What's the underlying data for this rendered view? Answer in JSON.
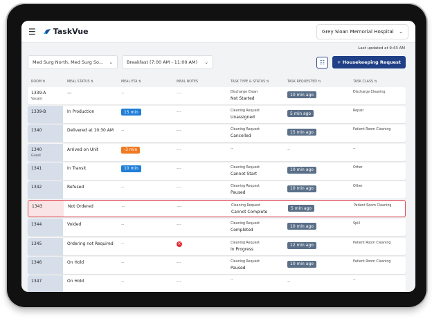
{
  "app": {
    "name": "TaskVue",
    "hospital": "Grey Sloan Memorial Hospital",
    "last_updated": "Last updated at 9:43 AM"
  },
  "filters": {
    "unit": "Med Surg North, Med Surg So...",
    "meal": "Breakfast (7:00 AM - 11:00 AM)",
    "add_button": "+ Housekeeping Request"
  },
  "columns": [
    "ROOM ⇅",
    "MEAL STATUS ⇅",
    "MEAL ETA ⇅",
    "MEAL NOTES",
    "TASK TYPE & STATUS ⇅",
    "TASK REQUESTED ⇅",
    "TASK CLASS ⇅"
  ],
  "rows": [
    {
      "room": "1339-A",
      "sub": "Vacant",
      "meal_status": "---",
      "eta": "--",
      "notes": "---",
      "task_type": "Discharge Clean",
      "task_status": "Not Started",
      "requested": "10 min ago",
      "class": "Discharge Cleaning"
    },
    {
      "room": "1339-B",
      "sub": "",
      "meal_status": "In Production",
      "eta": "15 min",
      "eta_color": "blue",
      "notes": "---",
      "task_type": "Cleaning Request",
      "task_status": "Unassigned",
      "requested": "5 min ago",
      "class": "Repair"
    },
    {
      "room": "1340",
      "sub": "",
      "meal_status": "Delivered at 10:30 AM",
      "eta": "--",
      "notes": "---",
      "task_type": "Cleaning Request",
      "task_status": "Cancelled",
      "requested": "15 min ago",
      "class": "Patient Room Cleaning"
    },
    {
      "room": "1340",
      "sub": "Guest",
      "meal_status": "Arrived on Unit",
      "eta": "-3 min",
      "eta_color": "orange",
      "notes": "---",
      "task_type": "--",
      "task_status": "",
      "requested": "--",
      "class": "--"
    },
    {
      "room": "1341",
      "sub": "",
      "meal_status": "In Transit",
      "eta": "10 min",
      "eta_color": "blue",
      "notes": "---",
      "task_type": "Cleaning Request",
      "task_status": "Cannot Start",
      "requested": "10 min ago",
      "class": "Other"
    },
    {
      "room": "1342",
      "sub": "",
      "meal_status": "Refused",
      "eta": "--",
      "notes": "---",
      "task_type": "Cleaning Request",
      "task_status": "Paused",
      "requested": "10 min ago",
      "class": "Other"
    },
    {
      "room": "1343",
      "sub": "",
      "meal_status": "Not Ordered",
      "eta": "--",
      "notes": "---",
      "task_type": "Cleaning Request",
      "task_status": "Cannot Complete",
      "requested": "5 min ago",
      "class": "Patient Room Cleaning",
      "alert": true
    },
    {
      "room": "1344",
      "sub": "",
      "meal_status": "Voided",
      "eta": "--",
      "notes": "---",
      "task_type": "Cleaning Request",
      "task_status": "Completed",
      "requested": "10 min ago",
      "class": "Spill"
    },
    {
      "room": "1345",
      "sub": "",
      "meal_status": "Ordering not Required",
      "eta": "--",
      "notes": "error-icon",
      "task_type": "Cleaning Request",
      "task_status": "In Progress",
      "requested": "12 min ago",
      "class": "Patient Room Cleaning"
    },
    {
      "room": "1346",
      "sub": "",
      "meal_status": "On Hold",
      "eta": "--",
      "notes": "---",
      "task_type": "Cleaning Request",
      "task_status": "Paused",
      "requested": "10 min ago",
      "class": "Patient Room Cleaning"
    },
    {
      "room": "1347",
      "sub": "",
      "meal_status": "On Hold",
      "eta": "--",
      "notes": "---",
      "task_type": "--",
      "task_status": "",
      "requested": "--",
      "class": "--"
    }
  ]
}
